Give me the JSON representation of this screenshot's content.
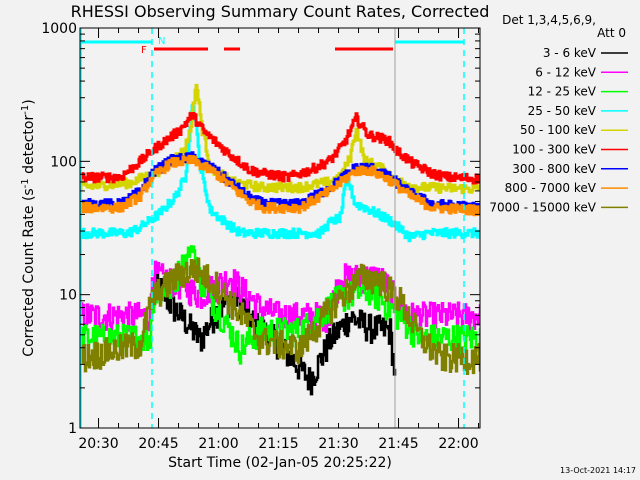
{
  "chart_data": {
    "type": "line",
    "title": "RHESSI Observing Summary Count Rates, Corrected",
    "xlabel": "Start Time (02-Jan-05 20:25:22)",
    "ylabel": "Corrected Count Rate (s",
    "ylabel_sup1": "-1",
    "ylabel_mid": " detector",
    "ylabel_sup2": "-1",
    "ylabel_end": ")",
    "yscale": "log",
    "ylim": [
      1,
      1000
    ],
    "xlim_minutes_from_start": [
      0,
      100
    ],
    "y_ticks": [
      {
        "v": 1,
        "label": "1"
      },
      {
        "v": 10,
        "label": "10"
      },
      {
        "v": 100,
        "label": "100"
      },
      {
        "v": 1000,
        "label": "1000"
      }
    ],
    "x_ticks": [
      {
        "m": 4.633,
        "label": "20:30"
      },
      {
        "m": 19.633,
        "label": "20:45"
      },
      {
        "m": 34.633,
        "label": "21:00"
      },
      {
        "m": 49.633,
        "label": "21:15"
      },
      {
        "m": 64.633,
        "label": "21:30"
      },
      {
        "m": 79.633,
        "label": "21:45"
      },
      {
        "m": 94.633,
        "label": "22:00"
      }
    ],
    "legend_header": [
      "Det 1,3,4,5,6,9,",
      "Att 0"
    ],
    "legend_placement": "right",
    "annotations": {
      "night_label": "N",
      "flare_label": "F",
      "night_intervals": [
        [
          0,
          18
        ],
        [
          78.75,
          96
        ]
      ],
      "flare_intervals": [
        [
          18.5,
          32
        ],
        [
          36,
          40
        ],
        [
          63.75,
          78.25
        ]
      ],
      "dashed_markers": [
        18,
        96
      ],
      "solid_marker": 78.75,
      "colors": {
        "night": "#00ffff",
        "flare": "#ff0000",
        "solid_marker": "#a0a0a0"
      }
    },
    "series": [
      {
        "name": "3 - 6 keV",
        "color": "#000000",
        "points": [
          [
            0,
            0
          ],
          [
            17.4,
            0
          ],
          [
            17.6,
            1.8
          ],
          [
            17.9,
            0
          ],
          [
            18.25,
            13.6
          ],
          [
            22.5,
            8.6
          ],
          [
            26.25,
            6.4
          ],
          [
            30,
            4.6
          ],
          [
            33.75,
            7.3
          ],
          [
            38.75,
            10
          ],
          [
            43.75,
            6
          ],
          [
            48.75,
            4.6
          ],
          [
            57.5,
            2.3
          ],
          [
            62.5,
            4.6
          ],
          [
            67.5,
            6.8
          ],
          [
            72.5,
            5.7
          ],
          [
            77.5,
            5.4
          ],
          [
            78.75,
            2.4
          ],
          [
            79,
            0
          ],
          [
            100,
            0
          ]
        ]
      },
      {
        "name": "6 - 12 keV",
        "color": "#ff00ff",
        "points": [
          [
            0,
            7
          ],
          [
            17.5,
            7
          ],
          [
            18,
            14.5
          ],
          [
            25,
            12
          ],
          [
            30,
            10
          ],
          [
            37.5,
            13.6
          ],
          [
            45,
            8
          ],
          [
            50,
            7
          ],
          [
            62,
            7
          ],
          [
            65,
            13.6
          ],
          [
            75,
            13.6
          ],
          [
            78.75,
            9.6
          ],
          [
            82.5,
            7
          ],
          [
            100,
            7
          ]
        ]
      },
      {
        "name": "12 - 25 keV",
        "color": "#00ff00",
        "points": [
          [
            0,
            4.8
          ],
          [
            17.5,
            4.8
          ],
          [
            18,
            9.6
          ],
          [
            22.5,
            11.4
          ],
          [
            28.25,
            23
          ],
          [
            30,
            13
          ],
          [
            35,
            7.3
          ],
          [
            40,
            4
          ],
          [
            45,
            5.4
          ],
          [
            55,
            5.4
          ],
          [
            65,
            9.6
          ],
          [
            72.5,
            11
          ],
          [
            80,
            6.8
          ],
          [
            85,
            4.8
          ],
          [
            100,
            4.8
          ]
        ]
      },
      {
        "name": "25 - 50 keV",
        "color": "#00ffff",
        "points": [
          [
            0,
            29
          ],
          [
            12,
            29
          ],
          [
            15,
            32
          ],
          [
            20,
            41
          ],
          [
            23.75,
            54
          ],
          [
            26.25,
            76
          ],
          [
            27.5,
            181
          ],
          [
            28,
            278
          ],
          [
            29,
            181
          ],
          [
            30,
            90
          ],
          [
            32.5,
            43
          ],
          [
            36.25,
            35
          ],
          [
            40,
            29
          ],
          [
            60,
            29
          ],
          [
            62.5,
            35
          ],
          [
            65,
            38
          ],
          [
            66.25,
            64
          ],
          [
            67,
            72
          ],
          [
            68.75,
            48
          ],
          [
            71.25,
            45
          ],
          [
            77.5,
            36
          ],
          [
            82.5,
            27
          ],
          [
            87,
            29
          ],
          [
            100,
            29
          ]
        ]
      },
      {
        "name": "50 - 100 keV",
        "color": "#d4d400",
        "points": [
          [
            0,
            64
          ],
          [
            12.5,
            69
          ],
          [
            20,
            86
          ],
          [
            26,
            121
          ],
          [
            27.5,
            172
          ],
          [
            29,
            386
          ],
          [
            30.5,
            172
          ],
          [
            31.5,
            128
          ],
          [
            32.5,
            90
          ],
          [
            38,
            70
          ],
          [
            45,
            64
          ],
          [
            55,
            64
          ],
          [
            62,
            70
          ],
          [
            65,
            76
          ],
          [
            67.5,
            108
          ],
          [
            69,
            180
          ],
          [
            71,
            102
          ],
          [
            75,
            90
          ],
          [
            79,
            72
          ],
          [
            84,
            64
          ],
          [
            100,
            62
          ]
        ]
      },
      {
        "name": "100 - 300 keV",
        "color": "#ff0000",
        "points": [
          [
            0,
            76
          ],
          [
            10,
            76
          ],
          [
            15,
            100
          ],
          [
            18,
            121
          ],
          [
            25,
            172
          ],
          [
            28,
            224
          ],
          [
            31,
            166
          ],
          [
            37.5,
            112
          ],
          [
            42.5,
            86
          ],
          [
            46,
            81
          ],
          [
            52,
            76
          ],
          [
            57.5,
            86
          ],
          [
            62.5,
            102
          ],
          [
            66,
            137
          ],
          [
            69,
            211
          ],
          [
            72,
            158
          ],
          [
            77,
            144
          ],
          [
            79,
            121
          ],
          [
            83,
            97
          ],
          [
            88,
            81
          ],
          [
            92,
            76
          ],
          [
            100,
            74
          ]
        ]
      },
      {
        "name": "300 - 800 keV",
        "color": "#0000ff",
        "points": [
          [
            0,
            48
          ],
          [
            10,
            48
          ],
          [
            15,
            60
          ],
          [
            18,
            82
          ],
          [
            22.5,
            102
          ],
          [
            28,
            108
          ],
          [
            33.75,
            86
          ],
          [
            40,
            61
          ],
          [
            42.5,
            53
          ],
          [
            46,
            48
          ],
          [
            55,
            48
          ],
          [
            62.5,
            64
          ],
          [
            68.75,
            90
          ],
          [
            72.5,
            90
          ],
          [
            77.5,
            76
          ],
          [
            82.5,
            58
          ],
          [
            88,
            48
          ],
          [
            100,
            45
          ]
        ]
      },
      {
        "name": "800 - 7000 keV",
        "color": "#ff8c00",
        "points": [
          [
            0,
            45
          ],
          [
            10,
            45
          ],
          [
            15,
            55
          ],
          [
            18,
            76
          ],
          [
            22.5,
            97
          ],
          [
            28,
            102
          ],
          [
            33.75,
            82
          ],
          [
            40,
            57
          ],
          [
            42.5,
            50
          ],
          [
            46,
            45
          ],
          [
            55,
            45
          ],
          [
            62.5,
            60
          ],
          [
            68.75,
            85
          ],
          [
            72.5,
            86
          ],
          [
            77.5,
            72
          ],
          [
            82.5,
            55
          ],
          [
            88,
            45
          ],
          [
            100,
            43
          ]
        ]
      },
      {
        "name": "7000 - 15000 keV",
        "color": "#808000",
        "points": [
          [
            0,
            3.4
          ],
          [
            15,
            4.3
          ],
          [
            18,
            9.6
          ],
          [
            25,
            14.5
          ],
          [
            28.75,
            15.8
          ],
          [
            33.75,
            12.2
          ],
          [
            40,
            7.3
          ],
          [
            45,
            4.6
          ],
          [
            55,
            4
          ],
          [
            62.5,
            8
          ],
          [
            70,
            13.6
          ],
          [
            75,
            13
          ],
          [
            80,
            9.1
          ],
          [
            85,
            4.8
          ],
          [
            90,
            3.4
          ],
          [
            100,
            3.4
          ]
        ]
      }
    ]
  },
  "footer": {
    "timestamp": "13-Oct-2021 14:17"
  }
}
